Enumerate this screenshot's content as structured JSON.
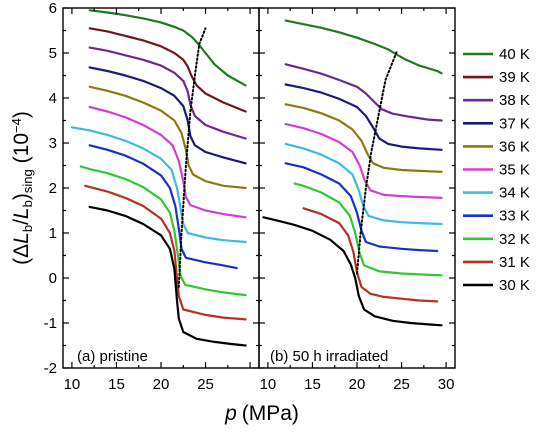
{
  "chart_data": {
    "type": "line",
    "xlabel": "p (MPa)",
    "xlabel_var": "p",
    "xlabel_unit": "(MPa)",
    "ylabel_parts": {
      "open": "(Δ",
      "L1": "L",
      "L1_sub": "b",
      "slash": "/",
      "L2": "L",
      "L2_sub": "b",
      "close": ")",
      "close_sub": "sing",
      "unit": "(10",
      "unit_exp": "−4",
      "unit_close": ")"
    },
    "ylim": [
      -2,
      6
    ],
    "yticks": [
      "-2",
      "-1",
      "0",
      "1",
      "2",
      "3",
      "4",
      "5",
      "6"
    ],
    "xticks_left": [
      "10",
      "15",
      "20",
      "25"
    ],
    "xticks_right": [
      "10",
      "15",
      "20",
      "25",
      "30"
    ],
    "panels": [
      {
        "label": "(a) pristine",
        "xlim": [
          9,
          31
        ],
        "legend_position": "none"
      },
      {
        "label": "(b) 50 h irradiated",
        "xlim": [
          9,
          31
        ],
        "legend_position": "right"
      }
    ],
    "series": [
      {
        "name": "40 K",
        "color": "#1e7a1e",
        "a": [
          [
            12.0,
            5.95
          ],
          [
            14.0,
            5.9
          ],
          [
            16.0,
            5.84
          ],
          [
            18.0,
            5.77
          ],
          [
            20.0,
            5.68
          ],
          [
            21.5,
            5.58
          ],
          [
            22.5,
            5.5
          ],
          [
            23.5,
            5.35
          ],
          [
            24.2,
            5.2
          ],
          [
            25.0,
            5.0
          ],
          [
            26.0,
            4.75
          ],
          [
            27.5,
            4.5
          ],
          [
            29.5,
            4.28
          ]
        ],
        "b": [
          [
            12.0,
            5.72
          ],
          [
            14.0,
            5.64
          ],
          [
            16.0,
            5.56
          ],
          [
            18.0,
            5.46
          ],
          [
            20.0,
            5.34
          ],
          [
            22.0,
            5.2
          ],
          [
            23.5,
            5.08
          ],
          [
            24.5,
            4.96
          ],
          [
            25.5,
            4.85
          ],
          [
            27.0,
            4.72
          ],
          [
            29.0,
            4.6
          ],
          [
            29.5,
            4.55
          ]
        ]
      },
      {
        "name": "39 K",
        "color": "#6b1a1a",
        "a": [
          [
            12.0,
            5.55
          ],
          [
            14.0,
            5.48
          ],
          [
            16.0,
            5.38
          ],
          [
            18.0,
            5.28
          ],
          [
            20.0,
            5.15
          ],
          [
            21.5,
            5.0
          ],
          [
            22.5,
            4.85
          ],
          [
            23.0,
            4.7
          ],
          [
            23.4,
            4.5
          ],
          [
            24.0,
            4.28
          ],
          [
            25.0,
            4.1
          ],
          [
            27.0,
            3.9
          ],
          [
            29.5,
            3.7
          ]
        ]
      },
      {
        "name": "38 K",
        "color": "#6a2a92",
        "a": [
          [
            12.0,
            5.12
          ],
          [
            14.0,
            5.05
          ],
          [
            16.0,
            4.95
          ],
          [
            18.0,
            4.85
          ],
          [
            20.0,
            4.72
          ],
          [
            21.5,
            4.56
          ],
          [
            22.5,
            4.38
          ],
          [
            23.0,
            4.15
          ],
          [
            23.3,
            3.85
          ],
          [
            23.8,
            3.6
          ],
          [
            25.0,
            3.4
          ],
          [
            27.0,
            3.25
          ],
          [
            29.5,
            3.1
          ]
        ],
        "b": [
          [
            12.0,
            4.75
          ],
          [
            14.0,
            4.65
          ],
          [
            16.0,
            4.54
          ],
          [
            18.0,
            4.4
          ],
          [
            20.0,
            4.25
          ],
          [
            21.0,
            4.1
          ],
          [
            22.0,
            3.9
          ],
          [
            22.8,
            3.75
          ],
          [
            24.0,
            3.65
          ],
          [
            26.0,
            3.58
          ],
          [
            28.0,
            3.52
          ],
          [
            29.5,
            3.5
          ]
        ]
      },
      {
        "name": "37 K",
        "color": "#1a1a7a",
        "a": [
          [
            12.0,
            4.68
          ],
          [
            14.0,
            4.6
          ],
          [
            16.0,
            4.5
          ],
          [
            18.0,
            4.38
          ],
          [
            20.0,
            4.22
          ],
          [
            21.5,
            4.05
          ],
          [
            22.5,
            3.82
          ],
          [
            23.0,
            3.5
          ],
          [
            23.3,
            3.15
          ],
          [
            23.8,
            2.95
          ],
          [
            25.0,
            2.8
          ],
          [
            27.0,
            2.68
          ],
          [
            29.5,
            2.55
          ]
        ],
        "b": [
          [
            12.0,
            4.3
          ],
          [
            14.0,
            4.22
          ],
          [
            16.0,
            4.12
          ],
          [
            18.0,
            3.98
          ],
          [
            20.0,
            3.8
          ],
          [
            21.0,
            3.6
          ],
          [
            21.8,
            3.35
          ],
          [
            22.5,
            3.1
          ],
          [
            23.5,
            2.98
          ],
          [
            25.0,
            2.92
          ],
          [
            27.0,
            2.88
          ],
          [
            29.5,
            2.85
          ]
        ]
      },
      {
        "name": "36 K",
        "color": "#8a7a10",
        "a": [
          [
            12.0,
            4.25
          ],
          [
            14.0,
            4.16
          ],
          [
            16.0,
            4.05
          ],
          [
            18.0,
            3.9
          ],
          [
            20.0,
            3.72
          ],
          [
            21.5,
            3.5
          ],
          [
            22.3,
            3.22
          ],
          [
            22.8,
            2.85
          ],
          [
            23.1,
            2.5
          ],
          [
            23.6,
            2.3
          ],
          [
            25.0,
            2.15
          ],
          [
            27.0,
            2.05
          ],
          [
            29.5,
            2.0
          ]
        ],
        "b": [
          [
            12.0,
            3.86
          ],
          [
            14.0,
            3.78
          ],
          [
            16.0,
            3.66
          ],
          [
            18.0,
            3.5
          ],
          [
            19.5,
            3.3
          ],
          [
            20.5,
            3.05
          ],
          [
            21.2,
            2.75
          ],
          [
            21.8,
            2.55
          ],
          [
            23.0,
            2.45
          ],
          [
            25.0,
            2.4
          ],
          [
            27.0,
            2.38
          ],
          [
            29.5,
            2.36
          ]
        ]
      },
      {
        "name": "35 K",
        "color": "#d040d0",
        "a": [
          [
            12.0,
            3.8
          ],
          [
            14.0,
            3.7
          ],
          [
            16.0,
            3.57
          ],
          [
            18.0,
            3.4
          ],
          [
            20.0,
            3.18
          ],
          [
            21.3,
            2.95
          ],
          [
            22.0,
            2.6
          ],
          [
            22.5,
            2.15
          ],
          [
            22.8,
            1.8
          ],
          [
            23.3,
            1.62
          ],
          [
            25.0,
            1.5
          ],
          [
            27.0,
            1.42
          ],
          [
            29.5,
            1.35
          ]
        ],
        "b": [
          [
            12.0,
            3.42
          ],
          [
            14.0,
            3.33
          ],
          [
            16.0,
            3.2
          ],
          [
            18.0,
            3.02
          ],
          [
            19.5,
            2.8
          ],
          [
            20.3,
            2.5
          ],
          [
            20.9,
            2.15
          ],
          [
            21.5,
            1.95
          ],
          [
            23.0,
            1.85
          ],
          [
            25.0,
            1.82
          ],
          [
            27.0,
            1.8
          ],
          [
            29.5,
            1.78
          ]
        ]
      },
      {
        "name": "34 K",
        "color": "#40b8e0",
        "a": [
          [
            10.0,
            3.35
          ],
          [
            12.0,
            3.28
          ],
          [
            14.0,
            3.18
          ],
          [
            16.0,
            3.05
          ],
          [
            18.0,
            2.88
          ],
          [
            20.0,
            2.65
          ],
          [
            21.2,
            2.4
          ],
          [
            21.8,
            2.0
          ],
          [
            22.2,
            1.55
          ],
          [
            22.5,
            1.2
          ],
          [
            23.0,
            1.0
          ],
          [
            25.0,
            0.9
          ],
          [
            27.0,
            0.84
          ],
          [
            29.5,
            0.8
          ]
        ],
        "b": [
          [
            12.0,
            2.98
          ],
          [
            14.0,
            2.88
          ],
          [
            16.0,
            2.74
          ],
          [
            18.0,
            2.55
          ],
          [
            19.5,
            2.3
          ],
          [
            20.2,
            1.95
          ],
          [
            20.7,
            1.6
          ],
          [
            21.3,
            1.38
          ],
          [
            23.0,
            1.28
          ],
          [
            25.0,
            1.24
          ],
          [
            27.0,
            1.22
          ],
          [
            29.5,
            1.2
          ]
        ]
      },
      {
        "name": "33 K",
        "color": "#1a30c8",
        "a": [
          [
            12.0,
            2.95
          ],
          [
            14.0,
            2.85
          ],
          [
            16.0,
            2.72
          ],
          [
            18.0,
            2.54
          ],
          [
            20.0,
            2.28
          ],
          [
            21.0,
            2.0
          ],
          [
            21.6,
            1.6
          ],
          [
            22.0,
            1.1
          ],
          [
            22.3,
            0.65
          ],
          [
            22.8,
            0.45
          ],
          [
            25.0,
            0.35
          ],
          [
            27.0,
            0.28
          ],
          [
            28.5,
            0.22
          ]
        ],
        "b": [
          [
            12.0,
            2.55
          ],
          [
            14.0,
            2.46
          ],
          [
            16.0,
            2.3
          ],
          [
            18.0,
            2.1
          ],
          [
            19.3,
            1.82
          ],
          [
            20.0,
            1.45
          ],
          [
            20.5,
            1.05
          ],
          [
            21.0,
            0.8
          ],
          [
            22.5,
            0.7
          ],
          [
            25.0,
            0.65
          ],
          [
            27.0,
            0.62
          ],
          [
            29.0,
            0.6
          ]
        ]
      },
      {
        "name": "32 K",
        "color": "#30c830",
        "a": [
          [
            11.0,
            2.48
          ],
          [
            12.0,
            2.42
          ],
          [
            14.0,
            2.33
          ],
          [
            16.0,
            2.2
          ],
          [
            18.0,
            2.02
          ],
          [
            20.0,
            1.75
          ],
          [
            21.0,
            1.45
          ],
          [
            21.5,
            1.05
          ],
          [
            21.9,
            0.5
          ],
          [
            22.2,
            0.05
          ],
          [
            22.7,
            -0.15
          ],
          [
            25.0,
            -0.25
          ],
          [
            27.0,
            -0.32
          ],
          [
            29.5,
            -0.38
          ]
        ],
        "b": [
          [
            13.0,
            2.1
          ],
          [
            14.0,
            2.05
          ],
          [
            16.0,
            1.9
          ],
          [
            18.0,
            1.68
          ],
          [
            19.2,
            1.38
          ],
          [
            19.8,
            1.0
          ],
          [
            20.3,
            0.55
          ],
          [
            20.8,
            0.28
          ],
          [
            22.5,
            0.15
          ],
          [
            25.0,
            0.1
          ],
          [
            27.0,
            0.08
          ],
          [
            29.5,
            0.06
          ]
        ]
      },
      {
        "name": "31 K",
        "color": "#b83020",
        "a": [
          [
            11.5,
            2.05
          ],
          [
            12.0,
            2.02
          ],
          [
            14.0,
            1.92
          ],
          [
            16.0,
            1.78
          ],
          [
            18.0,
            1.6
          ],
          [
            20.0,
            1.32
          ],
          [
            21.0,
            1.0
          ],
          [
            21.5,
            0.6
          ],
          [
            21.8,
            0.0
          ],
          [
            22.0,
            -0.4
          ],
          [
            22.5,
            -0.7
          ],
          [
            25.0,
            -0.82
          ],
          [
            27.0,
            -0.88
          ],
          [
            29.5,
            -0.92
          ]
        ],
        "b": [
          [
            14.0,
            1.55
          ],
          [
            16.0,
            1.42
          ],
          [
            18.0,
            1.22
          ],
          [
            19.0,
            0.95
          ],
          [
            19.6,
            0.58
          ],
          [
            20.0,
            0.12
          ],
          [
            20.5,
            -0.2
          ],
          [
            21.5,
            -0.35
          ],
          [
            23.0,
            -0.42
          ],
          [
            25.0,
            -0.46
          ],
          [
            27.0,
            -0.5
          ],
          [
            29.0,
            -0.52
          ]
        ]
      },
      {
        "name": "30 K",
        "color": "#000000",
        "a": [
          [
            12.0,
            1.58
          ],
          [
            14.0,
            1.5
          ],
          [
            16.0,
            1.38
          ],
          [
            18.0,
            1.2
          ],
          [
            20.0,
            0.95
          ],
          [
            21.0,
            0.65
          ],
          [
            21.5,
            0.2
          ],
          [
            21.8,
            -0.5
          ],
          [
            22.0,
            -0.9
          ],
          [
            22.5,
            -1.2
          ],
          [
            24.0,
            -1.35
          ],
          [
            26.0,
            -1.42
          ],
          [
            28.0,
            -1.47
          ],
          [
            29.5,
            -1.5
          ]
        ],
        "b": [
          [
            9.5,
            1.35
          ],
          [
            11.0,
            1.28
          ],
          [
            13.0,
            1.18
          ],
          [
            15.0,
            1.05
          ],
          [
            17.0,
            0.85
          ],
          [
            18.5,
            0.6
          ],
          [
            19.3,
            0.3
          ],
          [
            19.8,
            0.0
          ],
          [
            20.2,
            -0.4
          ],
          [
            20.8,
            -0.7
          ],
          [
            22.0,
            -0.85
          ],
          [
            24.0,
            -0.95
          ],
          [
            26.0,
            -1.0
          ],
          [
            28.0,
            -1.03
          ],
          [
            29.5,
            -1.05
          ]
        ]
      }
    ],
    "dotted_lines": [
      {
        "panel": "a",
        "points": [
          [
            22.0,
            -0.2
          ],
          [
            22.3,
            1.0
          ],
          [
            22.8,
            2.5
          ],
          [
            23.3,
            3.7
          ],
          [
            23.8,
            4.5
          ],
          [
            24.3,
            5.2
          ],
          [
            25.0,
            5.55
          ]
        ]
      },
      {
        "panel": "b",
        "points": [
          [
            20.0,
            0.1
          ],
          [
            20.4,
            1.0
          ],
          [
            21.0,
            2.0
          ],
          [
            21.6,
            2.8
          ],
          [
            22.3,
            3.5
          ],
          [
            23.2,
            4.4
          ],
          [
            24.5,
            5.05
          ]
        ]
      }
    ]
  }
}
